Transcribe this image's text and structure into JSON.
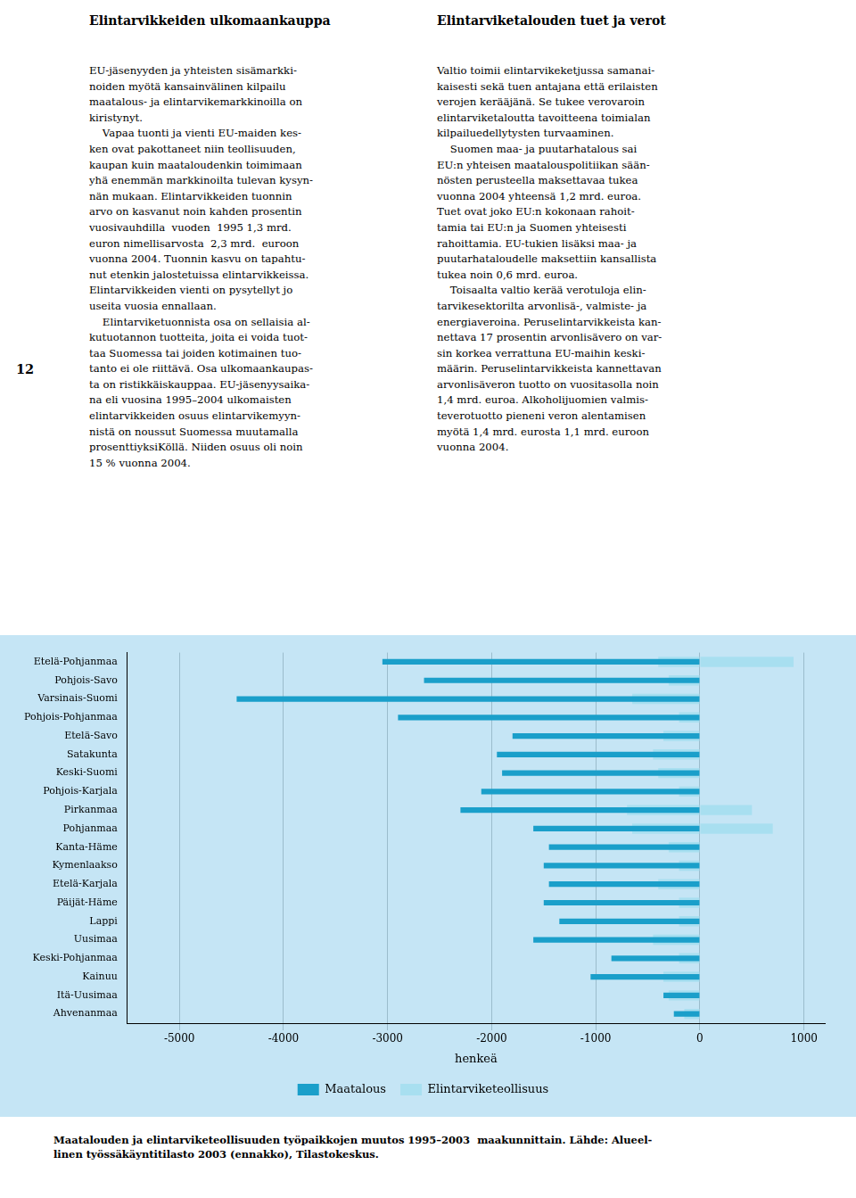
{
  "title_left": "Elintarvikkeiden ulkomaankauppa",
  "title_right": "Elintarviketalouden tuet ja verot",
  "body_left": [
    "EU-jäsenyyden ja yhteisten sisämarkki-",
    "noiden myötä kansainvälinen kilpailu",
    "maatalous- ja elintarvikemarkkinoilla on",
    "kiristynyt.",
    "    Vapaa tuonti ja vienti EU-maiden kes-",
    "ken ovat pakottaneet niin teollisuuden,",
    "kaupan kuin maataloudenkin toimimaan",
    "yhä enemmän markkinoilta tulevan kysyn-",
    "nän mukaan. Elintarvikkeiden tuonnin",
    "arvo on kasvanut noin kahden prosentin",
    "vuosivauhdilla  vuoden  1995 1,3 mrd.",
    "euron nimellisarvosta  2,3 mrd.  euroon",
    "vuonna 2004. Tuonnin kasvu on tapahtu-",
    "nut etenkin jalostetuissa elintarvikkeissa.",
    "Elintarvikkeiden vienti on pysytellyt jo",
    "useita vuosia ennallaan.",
    "    Elintarviketuonnista osa on sellaisia al-",
    "kutuotannon tuotteita, joita ei voida tuot-",
    "taa Suomessa tai joiden kotimainen tuo-",
    "tanto ei ole riittävä. Osa ulkomaankaupas-",
    "ta on ristikkäiskauppaa. EU-jäsenyysaika-",
    "na eli vuosina 1995–2004 ulkomaisten",
    "elintarvikkeiden osuus elintarvikemyyn-",
    "nistä on noussut Suomessa muutamalla",
    "prosenttiyksiKöllä. Niiden osuus oli noin",
    "15 % vuonna 2004."
  ],
  "body_right": [
    "Valtio toimii elintarvikeketjussa samanai-",
    "kaisesti sekä tuen antajana että erilaisten",
    "verojen kerääjänä. Se tukee verovaroin",
    "elintarviketaloutta tavoitteena toimialan",
    "kilpailuedellytysten turvaaminen.",
    "    Suomen maa- ja puutarhatalous sai",
    "EU:n yhteisen maatalouspolitiikan sään-",
    "nösten perusteella maksettavaa tukea",
    "vuonna 2004 yhteensä 1,2 mrd. euroa.",
    "Tuet ovat joko EU:n kokonaan rahoit-",
    "tamia tai EU:n ja Suomen yhteisesti",
    "rahoittamia. EU-tukien lisäksi maa- ja",
    "puutarhataloudelle maksettiin kansallista",
    "tukea noin 0,6 mrd. euroa.",
    "    Toisaalta valtio kerää verotuloja elin-",
    "tarvikesektorilta arvonlisä-, valmiste- ja",
    "energiaveroina. Peruselintarvikkeista kan-",
    "nettava 17 prosentin arvonlisävero on var-",
    "sin korkea verrattuna EU-maihin keski-",
    "määrin. Peruselintarvikkeista kannettavan",
    "arvonlisäveron tuotto on vuositasolla noin",
    "1,4 mrd. euroa. Alkoholijuomien valmis-",
    "teverotuotto pieneni veron alentamisen",
    "myötä 1,4 mrd. eurosta 1,1 mrd. euroon",
    "vuonna 2004."
  ],
  "page_number": "12",
  "caption": [
    "Maatalouden ja elintarviketeollisuuden työpaikkojen muutos 1995–2003  maakunnittain. Lähde: Alueel-",
    "linen työssäkäyntitilasto 2003 (ennakko), Tilastokeskus."
  ],
  "chart_data": {
    "type": "bar",
    "orientation": "horizontal",
    "stacked": false,
    "categories": [
      "Etelä-Pohjanmaa",
      "Pohjois-Savo",
      "Varsinais-Suomi",
      "Pohjois-Pohjanmaa",
      "Etelä-Savo",
      "Satakunta",
      "Keski-Suomi",
      "Pohjois-Karjala",
      "Pirkanmaa",
      "Pohjanmaa",
      "Kanta-Häme",
      "Kymenlaakso",
      "Etelä-Karjala",
      "Päijät-Häme",
      "Lappi",
      "Uusimaa",
      "Keski-Pohjanmaa",
      "Kainuu",
      "Itä-Uusimaa",
      "Ahvenanmaa"
    ],
    "series": [
      {
        "name": "Maatalous",
        "color": "#1a9fca",
        "values": [
          -3050,
          -2650,
          -4450,
          -2900,
          -1800,
          -1950,
          -1900,
          -2100,
          -2300,
          -1600,
          -1450,
          -1500,
          -1450,
          -1500,
          -1350,
          -1600,
          -850,
          -1050,
          -350,
          -250
        ]
      },
      {
        "name": "Elintarviketeollisuus",
        "color": "#a8dff0",
        "values": [
          -400,
          -300,
          -650,
          -200,
          -350,
          -450,
          -400,
          -200,
          -700,
          -650,
          -300,
          -200,
          -400,
          -200,
          -200,
          -450,
          -200,
          -350,
          -300,
          -150
        ]
      },
      {
        "name": "Elintarviketeollisuus",
        "color": "#a8dff0",
        "values": [
          900,
          0,
          0,
          0,
          0,
          0,
          0,
          0,
          500,
          700,
          0,
          0,
          0,
          0,
          0,
          0,
          0,
          0,
          0,
          0
        ]
      }
    ],
    "xlabel": "henkeä",
    "xlim": [
      -5500,
      1200
    ],
    "xticks": [
      -5000,
      -4000,
      -3000,
      -2000,
      -1000,
      0,
      1000
    ],
    "grid": true,
    "legend": "bottom"
  }
}
